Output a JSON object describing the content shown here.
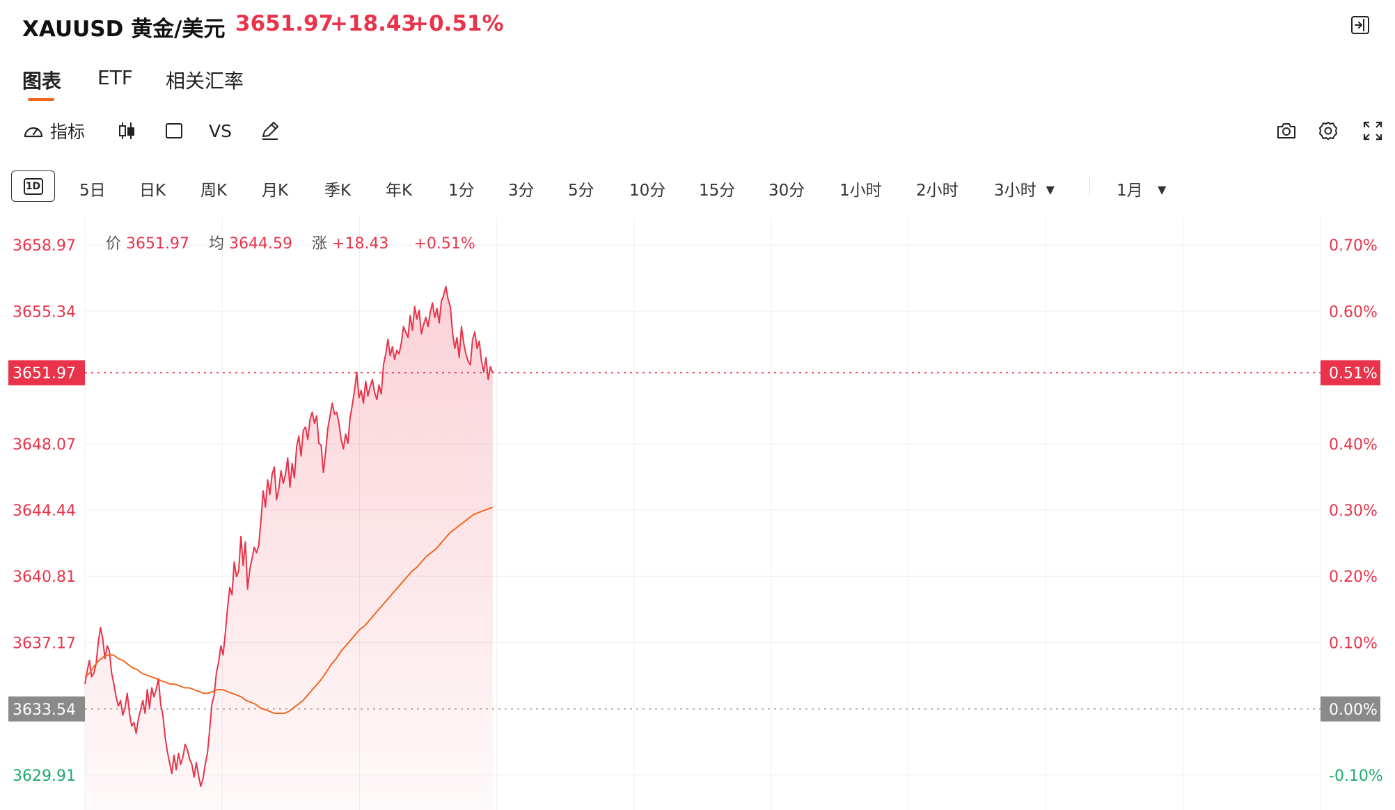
{
  "header": {
    "symbol": "XAUUSD 黄金/美元",
    "price": "3651.97",
    "change": "+18.43",
    "change_pct": "+0.51%"
  },
  "tabs": [
    {
      "label": "图表",
      "active": true
    },
    {
      "label": "ETF",
      "active": false
    },
    {
      "label": "相关汇率",
      "active": false
    }
  ],
  "toolbar": {
    "indicator_label": "指标",
    "vs_label": "VS"
  },
  "intervals": {
    "active": "1D",
    "items": [
      "5日",
      "日K",
      "周K",
      "月K",
      "季K",
      "年K",
      "1分",
      "3分",
      "5分",
      "10分",
      "15分",
      "30分",
      "1小时",
      "2小时",
      "3小时"
    ],
    "dropdown_tail": "1月"
  },
  "info": {
    "price_label": "价",
    "price_value": "3651.97",
    "avg_label": "均",
    "avg_value": "3644.59",
    "change_label": "涨",
    "change_value": "+18.43",
    "change_pct": "+0.51%"
  },
  "colors": {
    "up": "#e8334a",
    "down": "#1fa86f",
    "avg_line": "#f0671f",
    "baseline_badge": "#8a8a8a"
  },
  "chart_data": {
    "type": "line",
    "ylim": [
      3628.0,
      3660.5
    ],
    "y_ticks_left": [
      "3658.97",
      "3655.34",
      "3651.97",
      "3648.07",
      "3644.44",
      "3640.81",
      "3637.17",
      "3633.54",
      "3629.91"
    ],
    "y_ticks_left_values": [
      3658.97,
      3655.34,
      3651.97,
      3648.07,
      3644.44,
      3640.81,
      3637.17,
      3633.54,
      3629.91
    ],
    "y_ticks_right": [
      "0.70%",
      "0.60%",
      "0.51%",
      "0.40%",
      "0.30%",
      "0.20%",
      "0.10%",
      "0.00%",
      "-0.10%"
    ],
    "prev_close": 3633.54,
    "current": 3651.97,
    "session_fraction": 0.33,
    "series": [
      {
        "values": [
          3634.9,
          3635.6,
          3636.2,
          3635.3,
          3635.5,
          3636.0,
          3637.2,
          3638.0,
          3637.4,
          3636.3,
          3637.0,
          3636.7,
          3635.5,
          3634.9,
          3634.2,
          3633.7,
          3634.0,
          3633.2,
          3633.6,
          3634.4,
          3633.3,
          3632.6,
          3632.8,
          3632.2,
          3633.0,
          3633.5,
          3634.0,
          3633.3,
          3634.6,
          3633.6,
          3634.7,
          3634.2,
          3634.6,
          3635.2,
          3633.8,
          3633.2,
          3632.0,
          3631.2,
          3630.6,
          3630.0,
          3631.0,
          3630.2,
          3631.1,
          3630.5,
          3630.9,
          3631.6,
          3631.3,
          3630.8,
          3630.5,
          3629.8,
          3630.6,
          3629.9,
          3629.3,
          3629.7,
          3630.5,
          3631.1,
          3632.4,
          3633.8,
          3634.3,
          3635.5,
          3636.1,
          3637.0,
          3636.5,
          3637.7,
          3639.1,
          3640.2,
          3639.8,
          3641.6,
          3640.8,
          3641.1,
          3643.0,
          3641.4,
          3642.7,
          3640.1,
          3641.2,
          3641.8,
          3642.4,
          3642.1,
          3642.5,
          3643.9,
          3645.5,
          3644.6,
          3646.1,
          3645.3,
          3646.4,
          3646.8,
          3645.0,
          3645.6,
          3646.6,
          3645.9,
          3646.4,
          3647.3,
          3645.7,
          3647.0,
          3646.2,
          3647.9,
          3648.5,
          3647.4,
          3648.8,
          3649.0,
          3648.3,
          3649.4,
          3649.8,
          3649.2,
          3649.6,
          3648.1,
          3648.0,
          3646.5,
          3647.6,
          3648.9,
          3649.6,
          3650.3,
          3649.7,
          3649.8,
          3649.2,
          3648.3,
          3647.8,
          3648.6,
          3648.1,
          3649.5,
          3650.2,
          3651.0,
          3652.0,
          3650.6,
          3651.0,
          3650.3,
          3651.5,
          3650.7,
          3651.2,
          3651.6,
          3650.9,
          3650.5,
          3651.3,
          3650.8,
          3652.4,
          3653.0,
          3653.8,
          3652.9,
          3653.4,
          3652.7,
          3653.2,
          3653.0,
          3653.6,
          3654.5,
          3654.2,
          3653.9,
          3655.1,
          3654.3,
          3655.6,
          3654.9,
          3655.4,
          3654.1,
          3654.6,
          3655.0,
          3654.5,
          3655.3,
          3655.8,
          3655.0,
          3655.5,
          3654.7,
          3655.9,
          3656.2,
          3656.7,
          3656.0,
          3655.6,
          3654.2,
          3653.3,
          3653.9,
          3652.8,
          3654.5,
          3653.6,
          3653.0,
          3652.6,
          3652.4,
          3653.8,
          3654.2,
          3653.3,
          3653.7,
          3652.6,
          3652.0,
          3652.8,
          3651.6,
          3652.3,
          3651.97
        ]
      },
      {
        "values": [
          3635.3,
          3635.5,
          3635.9,
          3636.2,
          3636.4,
          3636.5,
          3636.5,
          3636.3,
          3636.2,
          3636.0,
          3635.8,
          3635.7,
          3635.5,
          3635.4,
          3635.3,
          3635.2,
          3635.1,
          3635.0,
          3634.9,
          3634.9,
          3634.8,
          3634.7,
          3634.7,
          3634.6,
          3634.5,
          3634.4,
          3634.4,
          3634.5,
          3634.6,
          3634.6,
          3634.5,
          3634.4,
          3634.3,
          3634.2,
          3634.0,
          3633.9,
          3633.8,
          3633.6,
          3633.5,
          3633.4,
          3633.3,
          3633.3,
          3633.3,
          3633.4,
          3633.6,
          3633.8,
          3634.0,
          3634.3,
          3634.6,
          3634.9,
          3635.2,
          3635.6,
          3636.0,
          3636.3,
          3636.7,
          3637.0,
          3637.3,
          3637.6,
          3637.9,
          3638.1,
          3638.4,
          3638.7,
          3639.0,
          3639.3,
          3639.6,
          3639.9,
          3640.2,
          3640.5,
          3640.8,
          3641.1,
          3641.3,
          3641.6,
          3641.9,
          3642.1,
          3642.3,
          3642.6,
          3642.9,
          3643.2,
          3643.4,
          3643.6,
          3643.8,
          3644.0,
          3644.2,
          3644.3,
          3644.4,
          3644.5,
          3644.59
        ]
      }
    ]
  }
}
